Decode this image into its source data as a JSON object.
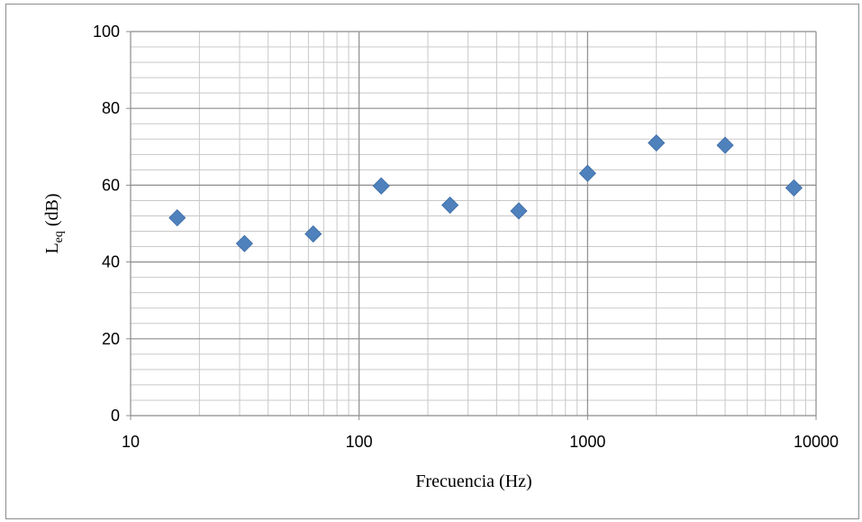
{
  "chart_data": {
    "type": "scatter",
    "x_scale": "log",
    "xlim": [
      10,
      10000
    ],
    "ylim": [
      0,
      100
    ],
    "xlabel": "Frecuencia (Hz)",
    "ylabel_main": "L",
    "ylabel_sub": "eq",
    "ylabel_unit": " (dB)",
    "grid": true,
    "legend": "none",
    "x_ticks": [
      "10",
      "100",
      "1000",
      "10000"
    ],
    "y_ticks": [
      "0",
      "20",
      "40",
      "60",
      "80",
      "100"
    ],
    "marker": "diamond",
    "marker_color": "#4f81bd",
    "series": [
      {
        "x": [
          16,
          31.5,
          63,
          125,
          250,
          500,
          1000,
          2000,
          4000,
          8000
        ],
        "y": [
          51.5,
          44.8,
          47.3,
          59.8,
          54.8,
          53.3,
          63.1,
          71.0,
          70.4,
          59.3
        ]
      }
    ]
  }
}
